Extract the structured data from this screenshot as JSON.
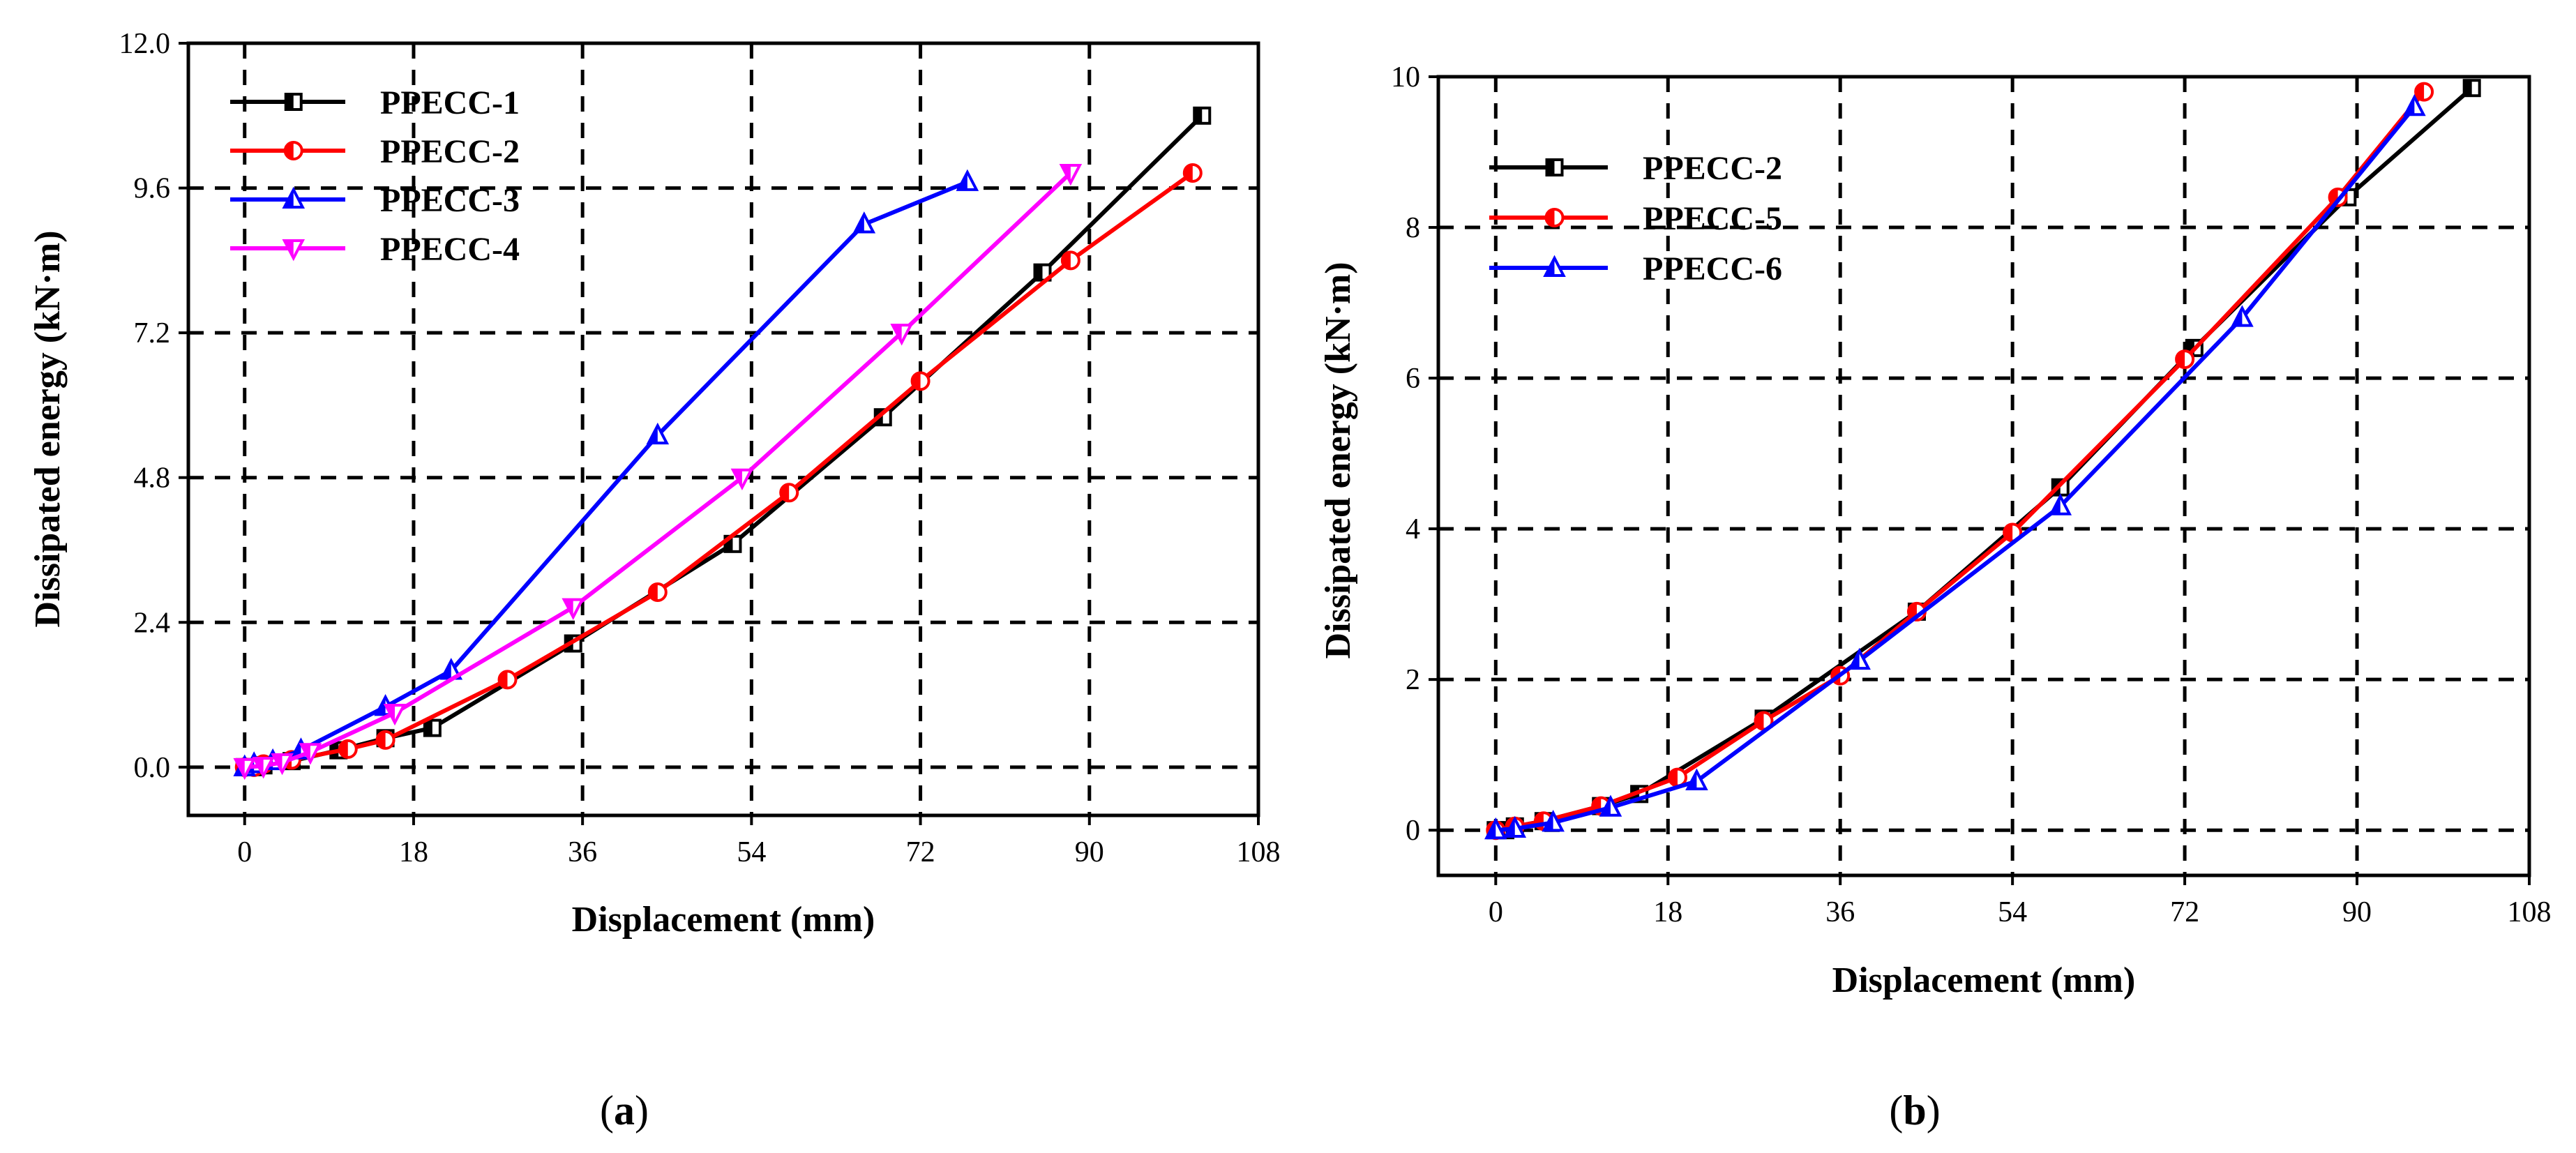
{
  "chart_data": [
    {
      "type": "line",
      "caption": "a",
      "xlabel": "Displacement (mm)",
      "ylabel": "Dissipated energy (kN·m)",
      "xlim": [
        -6,
        108
      ],
      "ylim": [
        -0.8,
        12.0
      ],
      "xticks": [
        "0",
        "18",
        "36",
        "54",
        "72",
        "90",
        "108"
      ],
      "yticks": [
        "0.0",
        "2.4",
        "4.8",
        "7.2",
        "9.6",
        "12.0"
      ],
      "grid": "dashed",
      "legend": "top-left",
      "series": [
        {
          "name": "PPECC-1",
          "color": "#000000",
          "marker": "square",
          "x": [
            0,
            1,
            2,
            5,
            10,
            15,
            20,
            35,
            52,
            68,
            85,
            102
          ],
          "y": [
            0,
            0,
            0.03,
            0.1,
            0.28,
            0.48,
            0.65,
            2.05,
            3.7,
            5.8,
            8.2,
            10.8
          ]
        },
        {
          "name": "PPECC-2",
          "color": "#ff0000",
          "marker": "circle",
          "x": [
            0,
            1,
            2,
            5,
            11,
            15,
            28,
            44,
            58,
            72,
            88,
            101
          ],
          "y": [
            0,
            0,
            0.05,
            0.12,
            0.3,
            0.45,
            1.45,
            2.9,
            4.55,
            6.4,
            8.4,
            9.85
          ]
        },
        {
          "name": "PPECC-3",
          "color": "#0000ff",
          "marker": "triangle-up",
          "x": [
            0,
            1,
            3,
            6,
            15,
            22,
            44,
            66,
            77
          ],
          "y": [
            0,
            0.05,
            0.1,
            0.28,
            1.0,
            1.6,
            5.5,
            9.0,
            9.7
          ]
        },
        {
          "name": "PPECC-4",
          "color": "#ff00ff",
          "marker": "triangle-down",
          "x": [
            0,
            2,
            4,
            7,
            16,
            35,
            53,
            70,
            88
          ],
          "y": [
            0,
            0.02,
            0.08,
            0.25,
            0.9,
            2.65,
            4.8,
            7.2,
            9.85
          ]
        }
      ]
    },
    {
      "type": "line",
      "caption": "b",
      "xlabel": "Displacement (mm)",
      "ylabel": "Dissipated energy (kN·m)",
      "xlim": [
        -6,
        108
      ],
      "ylim": [
        -0.6,
        10.0
      ],
      "xticks": [
        "0",
        "18",
        "36",
        "54",
        "72",
        "90",
        "108"
      ],
      "yticks": [
        "0",
        "2",
        "4",
        "6",
        "8",
        "10"
      ],
      "grid": "dashed",
      "legend": "top-left",
      "series": [
        {
          "name": "PPECC-2",
          "color": "#000000",
          "marker": "square",
          "x": [
            0,
            1,
            2,
            5,
            11,
            15,
            28,
            44,
            59,
            73,
            89,
            102
          ],
          "y": [
            0,
            0,
            0.05,
            0.12,
            0.32,
            0.48,
            1.48,
            2.9,
            4.55,
            6.4,
            8.4,
            9.85
          ]
        },
        {
          "name": "PPECC-5",
          "color": "#ff0000",
          "marker": "circle",
          "x": [
            0,
            2,
            5,
            11,
            19,
            28,
            36,
            44,
            54,
            72,
            88,
            97
          ],
          "y": [
            0,
            0.05,
            0.12,
            0.32,
            0.7,
            1.45,
            2.05,
            2.9,
            3.95,
            6.25,
            8.4,
            9.8
          ]
        },
        {
          "name": "PPECC-6",
          "color": "#0000ff",
          "marker": "triangle-up",
          "x": [
            0,
            2,
            6,
            12,
            21,
            38,
            59,
            78,
            96
          ],
          "y": [
            0,
            0.02,
            0.1,
            0.3,
            0.65,
            2.25,
            4.3,
            6.8,
            9.6
          ]
        }
      ]
    }
  ]
}
